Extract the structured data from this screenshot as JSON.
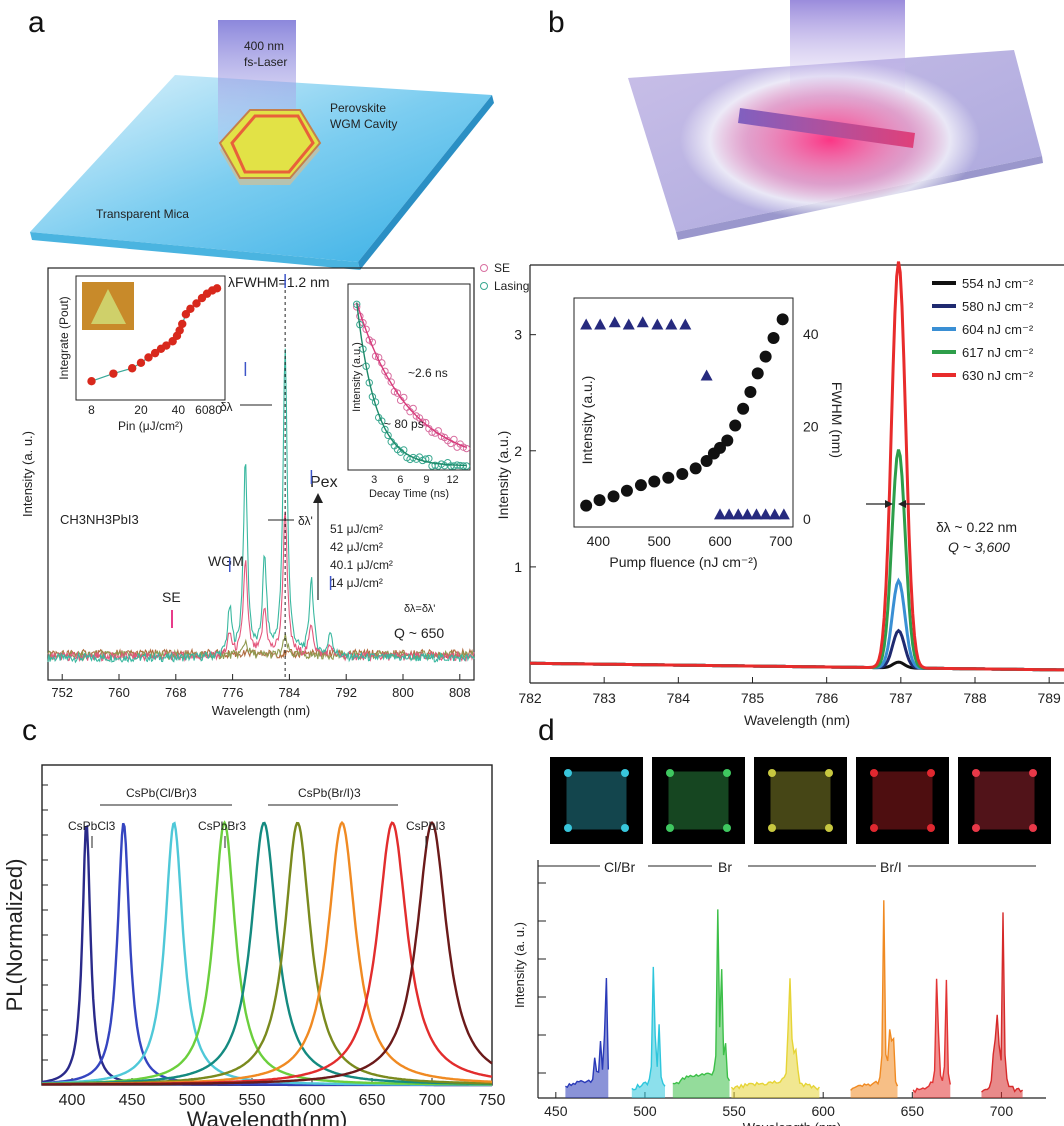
{
  "panel_labels": {
    "a": "a",
    "b": "b",
    "c": "c",
    "d": "d"
  },
  "schematic_a": {
    "laser": "400 nm",
    "laser2": "fs-Laser",
    "cavity1": "Perovskite",
    "cavity2": "WGM Cavity",
    "substrate": "Transparent Mica"
  },
  "colors": {
    "sky": "#3fb5e8",
    "sky_light": "#bfe7f6",
    "hexagon": "#e3e346",
    "hex_edge": "#e06a3a",
    "pink_glow": "#ff3f86",
    "lavender": "#bdb7e6",
    "rod": "#c0449a",
    "series_dark": "#111111",
    "series_navy": "#1f2a70",
    "series_sky": "#3a8fd4",
    "series_green": "#2e9e4a",
    "series_red": "#e82b2b",
    "navy_marker": "#262a7e"
  },
  "chart_data": [
    {
      "type": "line",
      "panel": "a",
      "xlabel": "Wavelength (nm)",
      "ylabel": "Intensity (a. u.)",
      "xlim": [
        750,
        810
      ],
      "ylim": [
        0,
        100
      ],
      "x_ticks": [
        "752",
        "760",
        "768",
        "776",
        "784",
        "792",
        "800",
        "808"
      ],
      "compound": "CH3NH3PbI3",
      "annotations": {
        "fwhm": "λFWHM=1.2 nm",
        "d1": "δλ",
        "d2": "δλ'",
        "pex": "Pex",
        "se": "SE",
        "wgm": "WGM",
        "eq": "δλ=δλ'",
        "q": "Q ~ 650"
      },
      "fluence_labels": [
        "51 μJ/cm²",
        "42 μJ/cm²",
        "40.1 μJ/cm²",
        "14 μJ/cm²"
      ],
      "series": [
        {
          "color": "#3ab8a0",
          "peaks": [
            [
              775.6,
              13
            ],
            [
              777.8,
              55
            ],
            [
              780.5,
              27
            ],
            [
              783.4,
              88
            ],
            [
              787.1,
              22
            ],
            [
              789.8,
              7
            ]
          ]
        },
        {
          "color": "#e3577c",
          "peaks": [
            [
              775.6,
              6
            ],
            [
              777.8,
              27
            ],
            [
              780.5,
              13
            ],
            [
              783.4,
              42
            ],
            [
              787.1,
              9
            ],
            [
              789.8,
              3
            ]
          ]
        },
        {
          "color": "#8f9a50",
          "peaks": [
            [
              777.8,
              4
            ],
            [
              783.4,
              5
            ]
          ]
        },
        {
          "color": "#b06c40",
          "peaks": []
        }
      ],
      "insets": [
        {
          "name": "threshold",
          "xlabel": "Pin (μJ/cm²)",
          "ylabel": "Integrate (Pout)",
          "x_ticks": [
            "8",
            "20",
            "40",
            "6080"
          ],
          "x": [
            8,
            12,
            17,
            20,
            23,
            26,
            29,
            32,
            36,
            39,
            41,
            43,
            46,
            50,
            56,
            62,
            68,
            75,
            82
          ],
          "y": [
            10,
            17,
            22,
            27,
            32,
            36,
            40,
            43,
            47,
            52,
            57,
            63,
            72,
            77,
            82,
            87,
            91,
            94,
            96
          ]
        },
        {
          "name": "decay",
          "xlabel": "Decay Time (ns)",
          "ylabel": "Intensity (a.u.)",
          "x_ticks": [
            "3",
            "6",
            "9",
            "12"
          ],
          "legend": [
            "SE",
            "Lasing"
          ],
          "series": [
            {
              "name": "SE",
              "tau_label": "~2.6 ns"
            },
            {
              "name": "Lasing",
              "tau_label": "~ 80 ps"
            }
          ]
        }
      ]
    },
    {
      "type": "line",
      "panel": "b",
      "xlabel": "Wavelength (nm)",
      "ylabel": "Intensity (a.u.)",
      "xlim": [
        782,
        789.2
      ],
      "ylim": [
        0,
        3.6
      ],
      "x_ticks": [
        "782",
        "783",
        "784",
        "785",
        "786",
        "787",
        "788",
        "789"
      ],
      "y_ticks": [
        "1",
        "2",
        "3"
      ],
      "legend_position": "top-right",
      "annotations": {
        "dl": "δλ ~ 0.22 nm",
        "q": "Q ~ 3,600"
      },
      "series": [
        {
          "name": "554 nJ cm⁻²",
          "color": "#111111",
          "peak": 0.05
        },
        {
          "name": "580 nJ cm⁻²",
          "color": "#1f2a70",
          "peak": 0.32
        },
        {
          "name": "604 nJ cm⁻²",
          "color": "#3a8fd4",
          "peak": 0.75
        },
        {
          "name": "617 nJ cm⁻²",
          "color": "#2e9e4a",
          "peak": 1.88
        },
        {
          "name": "630 nJ cm⁻²",
          "color": "#e82b2b",
          "peak": 3.5
        }
      ],
      "inset": {
        "xlabel": "Pump fluence (nJ cm⁻²)",
        "ylabel_left": "Intensity (a.u.)",
        "ylabel_right": "FWHM (nm)",
        "x_ticks": [
          "400",
          "500",
          "600",
          "700"
        ],
        "y_right_ticks": [
          "0",
          "20",
          "40"
        ],
        "intensity": {
          "x": [
            380,
            402,
            425,
            447,
            470,
            492,
            515,
            538,
            560,
            578,
            590,
            600,
            612,
            625,
            638,
            650,
            662,
            675,
            688,
            703
          ],
          "y": [
            0.05,
            0.08,
            0.1,
            0.13,
            0.16,
            0.18,
            0.2,
            0.22,
            0.25,
            0.29,
            0.33,
            0.36,
            0.4,
            0.48,
            0.57,
            0.66,
            0.76,
            0.85,
            0.95,
            1.05
          ]
        },
        "fwhm": {
          "x": [
            380,
            403,
            427,
            450,
            473,
            497,
            520,
            543,
            578,
            600,
            615,
            630,
            645,
            660,
            675,
            690,
            705
          ],
          "y": [
            42,
            42,
            42.5,
            42,
            42.5,
            42,
            42,
            42,
            31,
            1,
            1,
            1,
            1,
            1,
            1,
            1,
            1
          ]
        }
      }
    },
    {
      "type": "line",
      "panel": "c",
      "xlabel": "Wavelength(nm)",
      "ylabel": "PL(Normalized)",
      "xlim": [
        375,
        750
      ],
      "ylim": [
        0,
        1.22
      ],
      "x_ticks": [
        "400",
        "450",
        "500",
        "550",
        "600",
        "650",
        "700",
        "750"
      ],
      "labels": {
        "cl": "CsPbCl3",
        "clbr": "CsPb(Cl/Br)3",
        "br": "CsPbBr3",
        "bri": "CsPb(Br/I)3",
        "i": "CsPbI3"
      },
      "series": [
        {
          "peak": 412,
          "width": 4,
          "color": "#2a2a8a"
        },
        {
          "peak": 443,
          "width": 6,
          "color": "#3545c0"
        },
        {
          "peak": 485,
          "width": 9,
          "color": "#4fc8d8"
        },
        {
          "peak": 527,
          "width": 11,
          "color": "#6bcf3d"
        },
        {
          "peak": 560,
          "width": 13,
          "color": "#148a80"
        },
        {
          "peak": 588,
          "width": 13,
          "color": "#7a8a1e"
        },
        {
          "peak": 625,
          "width": 14,
          "color": "#f08a22"
        },
        {
          "peak": 667,
          "width": 15,
          "color": "#e22d2d"
        },
        {
          "peak": 700,
          "width": 15,
          "color": "#6b1a1a"
        }
      ]
    },
    {
      "type": "line",
      "panel": "d",
      "xlabel": "Wavelength (nm)",
      "ylabel": "Intensity (a. u.)",
      "xlim": [
        440,
        725
      ],
      "ylim": [
        0,
        1.0
      ],
      "x_ticks": [
        "450",
        "500",
        "550",
        "600",
        "650",
        "700"
      ],
      "range_labels": {
        "clbr": "Cl/Br",
        "br": "Br",
        "bri": "Br/I"
      },
      "image_tints": [
        "#38c6dc",
        "#3fc860",
        "#c8c840",
        "#e02830",
        "#e83848"
      ],
      "series": [
        {
          "color": "#2a3ab8",
          "peaks": [
            [
              472,
              0.14
            ],
            [
              475,
              0.2
            ],
            [
              478,
              0.88
            ]
          ],
          "bg": [
            455,
            480,
            0.07
          ]
        },
        {
          "color": "#2ec6dc",
          "peaks": [
            [
              505,
              0.9
            ],
            [
              508,
              0.3
            ]
          ],
          "bg": [
            492,
            512,
            0.05
          ]
        },
        {
          "color": "#3cbf48",
          "peaks": [
            [
              541,
              0.9
            ],
            [
              543,
              0.5
            ],
            [
              545,
              0.2
            ]
          ],
          "bg": [
            515,
            548,
            0.1
          ]
        },
        {
          "color": "#e6d436",
          "peaks": [
            [
              581,
              0.9
            ],
            [
              583,
              0.3
            ],
            [
              585,
              0.22
            ]
          ],
          "bg": [
            548,
            598,
            0.06
          ]
        },
        {
          "color": "#f08a22",
          "peaks": [
            [
              634,
              0.9
            ],
            [
              637,
              0.35
            ],
            [
              639,
              0.5
            ]
          ],
          "bg": [
            615,
            642,
            0.05
          ]
        },
        {
          "color": "#e23434",
          "peaks": [
            [
              664,
              0.9
            ],
            [
              669,
              0.55
            ]
          ],
          "bg": [
            650,
            672,
            0.04
          ]
        },
        {
          "color": "#d62a2a",
          "peaks": [
            [
              696,
              0.4
            ],
            [
              698,
              0.58
            ],
            [
              701,
              0.9
            ]
          ],
          "bg": [
            688,
            712,
            0.03
          ]
        }
      ]
    }
  ]
}
